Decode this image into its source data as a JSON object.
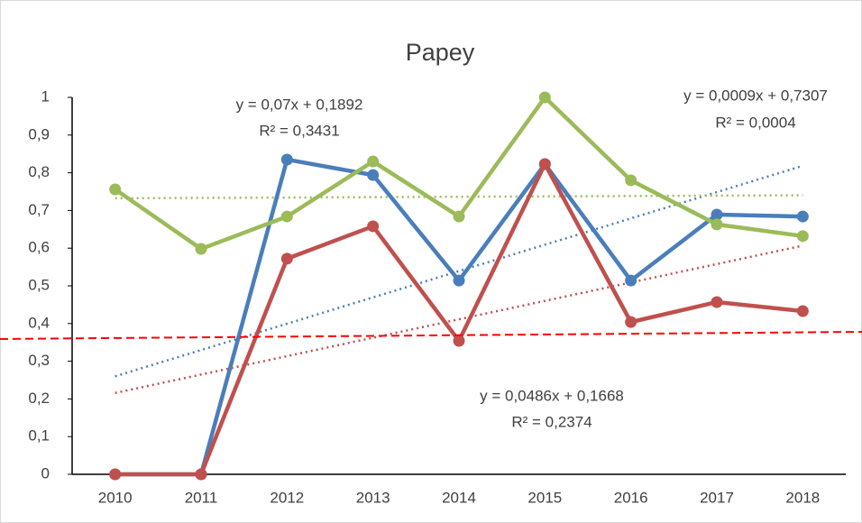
{
  "chart_data": {
    "type": "line",
    "title": "Papey",
    "categories": [
      "2010",
      "2011",
      "2012",
      "2013",
      "2014",
      "2015",
      "2016",
      "2017",
      "2018"
    ],
    "series": [
      {
        "color": "#4a7ebb",
        "trendline": true,
        "values": [
          0,
          0,
          0.835,
          0.794,
          0.514,
          0.823,
          0.514,
          0.689,
          0.684
        ]
      },
      {
        "color": "#c0504d",
        "trendline": true,
        "values": [
          0,
          0,
          0.572,
          0.658,
          0.354,
          0.823,
          0.404,
          0.457,
          0.433
        ]
      },
      {
        "color": "#9bbb59",
        "trendline": true,
        "values": [
          0.756,
          0.598,
          0.684,
          0.83,
          0.684,
          1,
          0.78,
          0.663,
          0.632
        ]
      }
    ],
    "reference_line": {
      "color": "#ff0000",
      "values": [
        0.359,
        0.378
      ]
    },
    "annotations": [
      "y = 0,07x + 0,1892",
      "R² = 0,3431",
      "y = 0,0009x + 0,7307",
      "R² = 0,0004",
      "y = 0,0486x + 0,1668",
      "R² = 0,2374"
    ],
    "ylim": [
      0,
      1
    ],
    "yticks": [
      0,
      {
        "value": 0.1,
        "label": "0,1"
      },
      {
        "value": 0.2,
        "label": "0,2"
      },
      {
        "value": 0.3,
        "label": "0,3"
      },
      {
        "value": 0.4,
        "label": "0,4"
      },
      {
        "value": 0.5,
        "label": "0,5"
      },
      {
        "value": 0.6,
        "label": "0,6"
      },
      {
        "value": 0.7,
        "label": "0,7"
      },
      {
        "value": 0.8,
        "label": "0,8"
      },
      {
        "value": 0.9,
        "label": "0,9"
      },
      1
    ]
  }
}
